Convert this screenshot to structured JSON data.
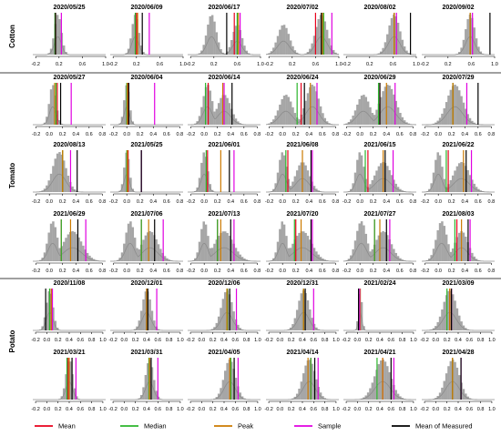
{
  "figure": {
    "groups": [
      {
        "label": "Cotton"
      },
      {
        "label": "Tomato"
      },
      {
        "label": "Potato"
      }
    ],
    "legend": [
      {
        "label": "Mean",
        "color": "#e8001c"
      },
      {
        "label": "Median",
        "color": "#2bb52b"
      },
      {
        "label": "Peak",
        "color": "#cc7a00"
      },
      {
        "label": "Sample",
        "color": "#e000e0"
      },
      {
        "label": "Mean of Measured",
        "color": "#000000"
      }
    ],
    "histogram_color": "#a6a6a6",
    "density_color": "#8c8c8c"
  },
  "chart_data": [
    {
      "type": "histogram",
      "title": "2020/05/25",
      "group": "Cotton",
      "x_ticks": [
        -0.2,
        0.2,
        0.6,
        1.0
      ],
      "xlim": [
        -0.25,
        1.0
      ],
      "hist_peak": 0.18,
      "hist_sd": 0.06,
      "mean": 0.14,
      "median": 0.13,
      "peak": 0.14,
      "sample": 0.24,
      "mean_measured": 0.14
    },
    {
      "type": "histogram",
      "title": "2020/06/09",
      "group": "Cotton",
      "x_ticks": [
        -0.2,
        0.2,
        0.6,
        1.0
      ],
      "xlim": [
        -0.25,
        1.0
      ],
      "hist_peak": 0.18,
      "hist_sd": 0.06,
      "mean": 0.2,
      "median": 0.18,
      "peak": 0.22,
      "sample": 0.42,
      "mean_measured": 0.3
    },
    {
      "type": "histogram",
      "title": "2020/06/17",
      "group": "Cotton",
      "x_ticks": [
        -0.2,
        0.2,
        0.6,
        1.0
      ],
      "xlim": [
        -0.25,
        1.0
      ],
      "hist_peak": 0.16,
      "hist_sd": 0.08,
      "hist2_peak": 0.6,
      "hist2_sd": 0.08,
      "mean": 0.55,
      "median": 0.6,
      "peak": 0.62,
      "sample": 0.65,
      "mean_measured": 0.42
    },
    {
      "type": "histogram",
      "title": "2020/07/02",
      "group": "Cotton",
      "x_ticks": [
        -0.2,
        0.2,
        0.6,
        1.0
      ],
      "xlim": [
        -0.25,
        1.0
      ],
      "hist_peak": 0.7,
      "hist_sd": 0.1,
      "hist2_peak": 0.05,
      "hist2_sd": 0.1,
      "mean": 0.6,
      "median": 0.74,
      "peak": 0.72,
      "sample": 0.88,
      "mean_measured": 0.7
    },
    {
      "type": "histogram",
      "title": "2020/08/02",
      "group": "Cotton",
      "x_ticks": [
        -0.2,
        0.2,
        0.6,
        1.0
      ],
      "xlim": [
        -0.25,
        1.0
      ],
      "hist_peak": 0.62,
      "hist_sd": 0.1,
      "mean": 0.62,
      "median": 0.62,
      "peak": 0.62,
      "sample": 0.66,
      "mean_measured": 0.9
    },
    {
      "type": "histogram",
      "title": "2020/09/02",
      "group": "Cotton",
      "x_ticks": [
        -0.2,
        0.2,
        0.6,
        1.0
      ],
      "xlim": [
        -0.25,
        1.0
      ],
      "hist_peak": 0.58,
      "hist_sd": 0.08,
      "mean": 0.58,
      "median": 0.58,
      "peak": 0.58,
      "sample": 0.62,
      "mean_measured": 0.92
    },
    {
      "type": "histogram",
      "title": "2020/05/27",
      "group": "Tomato",
      "x_ticks": [
        -0.2,
        0.0,
        0.2,
        0.4,
        0.6,
        0.8
      ],
      "xlim": [
        -0.25,
        0.85
      ],
      "hist_peak": 0.05,
      "hist_sd": 0.05,
      "mean": 0.12,
      "median": 0.1,
      "peak": 0.08,
      "sample": 0.33,
      "mean_measured": 0.17
    },
    {
      "type": "histogram",
      "title": "2020/06/04",
      "group": "Tomato",
      "x_ticks": [
        -0.2,
        0.0,
        0.2,
        0.4,
        0.6,
        0.8
      ],
      "xlim": [
        -0.25,
        0.85
      ],
      "hist_peak": 0.0,
      "hist_sd": 0.04,
      "mean": 0.02,
      "median": 0.0,
      "peak": 0.01,
      "sample": 0.42,
      "mean_measured": 0.03
    },
    {
      "type": "histogram",
      "title": "2020/06/14",
      "group": "Tomato",
      "x_ticks": [
        -0.2,
        0.0,
        0.2,
        0.4,
        0.6,
        0.8
      ],
      "xlim": [
        -0.25,
        0.85
      ],
      "hist_peak": 0.05,
      "hist_sd": 0.07,
      "hist2_peak": 0.3,
      "hist2_sd": 0.1,
      "mean": 0.06,
      "median": 0.02,
      "peak": 0.28,
      "sample": 0.3,
      "mean_measured": 0.42
    },
    {
      "type": "histogram",
      "title": "2020/06/24",
      "group": "Tomato",
      "x_ticks": [
        -0.2,
        0.0,
        0.2,
        0.4,
        0.6,
        0.8
      ],
      "xlim": [
        -0.25,
        0.85
      ],
      "hist_peak": 0.45,
      "hist_sd": 0.1,
      "hist2_peak": 0.05,
      "hist2_sd": 0.1,
      "mean": 0.28,
      "median": 0.22,
      "peak": 0.42,
      "sample": 0.52,
      "mean_measured": 0.33
    },
    {
      "type": "histogram",
      "title": "2020/06/29",
      "group": "Tomato",
      "x_ticks": [
        -0.2,
        0.0,
        0.2,
        0.4,
        0.6,
        0.8
      ],
      "xlim": [
        -0.25,
        0.85
      ],
      "hist_peak": 0.42,
      "hist_sd": 0.12,
      "hist2_peak": 0.05,
      "hist2_sd": 0.1,
      "mean": 0.3,
      "median": 0.28,
      "peak": 0.4,
      "sample": 0.53,
      "mean_measured": 0.3
    },
    {
      "type": "histogram",
      "title": "2020/07/29",
      "group": "Tomato",
      "x_ticks": [
        -0.2,
        0.0,
        0.2,
        0.4,
        0.6,
        0.8
      ],
      "xlim": [
        -0.25,
        0.85
      ],
      "hist_peak": 0.25,
      "hist_sd": 0.12,
      "mean": 0.22,
      "median": 0.22,
      "peak": 0.22,
      "sample": 0.43,
      "mean_measured": 0.6
    },
    {
      "type": "histogram",
      "title": "2020/08/13",
      "group": "Tomato",
      "x_ticks": [
        -0.2,
        0.0,
        0.2,
        0.4,
        0.6,
        0.8
      ],
      "xlim": [
        -0.25,
        0.85
      ],
      "hist_peak": 0.15,
      "hist_sd": 0.1,
      "mean": 0.2,
      "median": 0.2,
      "peak": 0.2,
      "sample": 0.32,
      "mean_measured": 0.42
    },
    {
      "type": "histogram",
      "title": "2021/05/25",
      "group": "Tomato",
      "x_ticks": [
        -0.2,
        0.0,
        0.2,
        0.4,
        0.6,
        0.8
      ],
      "xlim": [
        -0.25,
        0.85
      ],
      "hist_peak": 0.0,
      "hist_sd": 0.04,
      "mean": 0.02,
      "median": 0.0,
      "peak": 0.01,
      "sample": 0.22,
      "mean_measured": 0.22
    },
    {
      "type": "histogram",
      "title": "2021/06/01",
      "group": "Tomato",
      "x_ticks": [
        -0.2,
        0.0,
        0.2,
        0.4,
        0.6,
        0.8
      ],
      "xlim": [
        -0.25,
        0.85
      ],
      "hist_peak": 0.0,
      "hist_sd": 0.05,
      "mean": 0.05,
      "median": 0.03,
      "peak": 0.25,
      "sample": 0.45,
      "mean_measured": 0.38
    },
    {
      "type": "histogram",
      "title": "2021/06/08",
      "group": "Tomato",
      "x_ticks": [
        -0.2,
        0.0,
        0.2,
        0.4,
        0.6,
        0.8
      ],
      "xlim": [
        -0.25,
        0.85
      ],
      "hist_peak": 0.0,
      "hist_sd": 0.06,
      "hist2_peak": 0.3,
      "hist2_sd": 0.1,
      "mean": 0.08,
      "median": 0.05,
      "peak": 0.3,
      "sample": 0.45,
      "mean_measured": 0.43
    },
    {
      "type": "histogram",
      "title": "2021/06/15",
      "group": "Tomato",
      "x_ticks": [
        -0.2,
        0.0,
        0.2,
        0.4,
        0.6,
        0.8
      ],
      "xlim": [
        -0.25,
        0.85
      ],
      "hist_peak": 0.0,
      "hist_sd": 0.06,
      "hist2_peak": 0.35,
      "hist2_sd": 0.12,
      "mean": 0.12,
      "median": 0.08,
      "peak": 0.35,
      "sample": 0.5,
      "mean_measured": 0.38
    },
    {
      "type": "histogram",
      "title": "2021/06/22",
      "group": "Tomato",
      "x_ticks": [
        -0.2,
        0.0,
        0.2,
        0.4,
        0.6,
        0.8
      ],
      "xlim": [
        -0.25,
        0.85
      ],
      "hist_peak": 0.0,
      "hist_sd": 0.06,
      "hist2_peak": 0.35,
      "hist2_sd": 0.12,
      "mean": 0.15,
      "median": 0.12,
      "peak": 0.38,
      "sample": 0.5,
      "mean_measured": 0.42
    },
    {
      "type": "histogram",
      "title": "2021/06/29",
      "group": "Tomato",
      "x_ticks": [
        -0.2,
        0.0,
        0.2,
        0.4,
        0.6,
        0.8
      ],
      "xlim": [
        -0.25,
        0.85
      ],
      "hist_peak": 0.05,
      "hist_sd": 0.07,
      "hist2_peak": 0.35,
      "hist2_sd": 0.14,
      "mean": 0.18,
      "median": 0.18,
      "peak": 0.32,
      "sample": 0.55,
      "mean_measured": 0.43
    },
    {
      "type": "histogram",
      "title": "2021/07/06",
      "group": "Tomato",
      "x_ticks": [
        -0.2,
        0.0,
        0.2,
        0.4,
        0.6,
        0.8
      ],
      "xlim": [
        -0.25,
        0.85
      ],
      "hist_peak": 0.05,
      "hist_sd": 0.07,
      "hist2_peak": 0.35,
      "hist2_sd": 0.12,
      "mean": 0.22,
      "median": 0.22,
      "peak": 0.33,
      "sample": 0.55,
      "mean_measured": 0.42
    },
    {
      "type": "histogram",
      "title": "2021/07/13",
      "group": "Tomato",
      "x_ticks": [
        -0.2,
        0.0,
        0.2,
        0.4,
        0.6,
        0.8
      ],
      "xlim": [
        -0.25,
        0.85
      ],
      "hist_peak": 0.0,
      "hist_sd": 0.06,
      "hist2_peak": 0.3,
      "hist2_sd": 0.14,
      "mean": 0.2,
      "median": 0.2,
      "peak": 0.25,
      "sample": 0.45,
      "mean_measured": 0.4
    },
    {
      "type": "histogram",
      "title": "2021/07/20",
      "group": "Tomato",
      "x_ticks": [
        -0.2,
        0.0,
        0.2,
        0.4,
        0.6,
        0.8
      ],
      "xlim": [
        -0.25,
        0.85
      ],
      "hist_peak": 0.0,
      "hist_sd": 0.06,
      "hist2_peak": 0.3,
      "hist2_sd": 0.14,
      "mean": 0.2,
      "median": 0.18,
      "peak": 0.28,
      "sample": 0.45,
      "mean_measured": 0.43
    },
    {
      "type": "histogram",
      "title": "2021/07/27",
      "group": "Tomato",
      "x_ticks": [
        -0.2,
        0.0,
        0.2,
        0.4,
        0.6,
        0.8
      ],
      "xlim": [
        -0.25,
        0.85
      ],
      "hist_peak": 0.02,
      "hist_sd": 0.08,
      "hist2_peak": 0.35,
      "hist2_sd": 0.12,
      "mean": 0.22,
      "median": 0.22,
      "peak": 0.3,
      "sample": 0.45,
      "mean_measured": 0.4
    },
    {
      "type": "histogram",
      "title": "2021/08/03",
      "group": "Tomato",
      "x_ticks": [
        -0.2,
        0.0,
        0.2,
        0.4,
        0.6,
        0.8
      ],
      "xlim": [
        -0.25,
        0.85
      ],
      "hist_peak": 0.05,
      "hist_sd": 0.08,
      "hist2_peak": 0.35,
      "hist2_sd": 0.1,
      "mean": 0.28,
      "median": 0.25,
      "peak": 0.35,
      "sample": 0.48,
      "mean_measured": 0.45
    },
    {
      "type": "histogram",
      "title": "2020/11/08",
      "group": "Potato",
      "x_ticks": [
        -0.2,
        0.0,
        0.2,
        0.4,
        0.6,
        0.8,
        1.0
      ],
      "xlim": [
        -0.25,
        1.05
      ],
      "hist_peak": 0.05,
      "hist_sd": 0.06,
      "mean": 0.08,
      "median": 0.05,
      "peak": 0.08,
      "sample": 0.1,
      "mean_measured": -0.02
    },
    {
      "type": "histogram",
      "title": "2020/12/01",
      "group": "Potato",
      "x_ticks": [
        -0.2,
        0.0,
        0.2,
        0.4,
        0.6,
        0.8,
        1.0
      ],
      "xlim": [
        -0.25,
        1.05
      ],
      "hist_peak": 0.4,
      "hist_sd": 0.08,
      "mean": 0.4,
      "median": 0.4,
      "peak": 0.4,
      "sample": 0.58,
      "mean_measured": 0.42
    },
    {
      "type": "histogram",
      "title": "2020/12/06",
      "group": "Potato",
      "x_ticks": [
        -0.2,
        0.0,
        0.2,
        0.4,
        0.6,
        0.8,
        1.0
      ],
      "xlim": [
        -0.25,
        1.05
      ],
      "hist_peak": 0.45,
      "hist_sd": 0.1,
      "mean": 0.46,
      "median": 0.46,
      "peak": 0.45,
      "sample": 0.62,
      "mean_measured": 0.5
    },
    {
      "type": "histogram",
      "title": "2020/12/31",
      "group": "Potato",
      "x_ticks": [
        -0.2,
        0.0,
        0.2,
        0.4,
        0.6,
        0.8,
        1.0
      ],
      "xlim": [
        -0.25,
        1.05
      ],
      "hist_peak": 0.42,
      "hist_sd": 0.1,
      "mean": 0.42,
      "median": 0.42,
      "peak": 0.42,
      "sample": 0.6,
      "mean_measured": 0.45
    },
    {
      "type": "histogram",
      "title": "2021/02/24",
      "group": "Potato",
      "x_ticks": [
        -0.2,
        0.0,
        0.2,
        0.4,
        0.6,
        0.8,
        1.0
      ],
      "xlim": [
        -0.25,
        1.05
      ],
      "hist_peak": 0.05,
      "hist_sd": 0.03,
      "mean": 0.05,
      "median": 0.05,
      "peak": 0.05,
      "sample": 0.04,
      "mean_measured": 0.02
    },
    {
      "type": "histogram",
      "title": "2021/03/09",
      "group": "Potato",
      "x_ticks": [
        -0.2,
        0.0,
        0.2,
        0.4,
        0.6,
        0.8,
        1.0
      ],
      "xlim": [
        -0.25,
        1.05
      ],
      "hist_peak": 0.25,
      "hist_sd": 0.12,
      "mean": 0.25,
      "median": 0.2,
      "peak": 0.25,
      "sample": 0.28,
      "mean_measured": 0.28
    },
    {
      "type": "histogram",
      "title": "2021/03/21",
      "group": "Potato",
      "x_ticks": [
        -0.2,
        0.0,
        0.2,
        0.4,
        0.6,
        0.8,
        1.0
      ],
      "xlim": [
        -0.25,
        1.05
      ],
      "hist_peak": 0.4,
      "hist_sd": 0.06,
      "mean": 0.38,
      "median": 0.36,
      "peak": 0.4,
      "sample": 0.52,
      "mean_measured": 0.45
    },
    {
      "type": "histogram",
      "title": "2021/03/31",
      "group": "Potato",
      "x_ticks": [
        -0.2,
        0.0,
        0.2,
        0.4,
        0.6,
        0.8,
        1.0
      ],
      "xlim": [
        -0.25,
        1.05
      ],
      "hist_peak": 0.45,
      "hist_sd": 0.07,
      "mean": 0.45,
      "median": 0.44,
      "peak": 0.45,
      "sample": 0.6,
      "mean_measured": 0.48
    },
    {
      "type": "histogram",
      "title": "2021/04/05",
      "group": "Potato",
      "x_ticks": [
        -0.2,
        0.0,
        0.2,
        0.4,
        0.6,
        0.8,
        1.0
      ],
      "xlim": [
        -0.25,
        1.05
      ],
      "hist_peak": 0.5,
      "hist_sd": 0.1,
      "mean": 0.52,
      "median": 0.52,
      "peak": 0.5,
      "sample": 0.65,
      "mean_measured": 0.58
    },
    {
      "type": "histogram",
      "title": "2021/04/14",
      "group": "Potato",
      "x_ticks": [
        -0.2,
        0.0,
        0.2,
        0.4,
        0.6,
        0.8,
        1.0
      ],
      "xlim": [
        -0.25,
        1.05
      ],
      "hist_peak": 0.52,
      "hist_sd": 0.11,
      "mean": 0.55,
      "median": 0.55,
      "peak": 0.5,
      "sample": 0.68,
      "mean_measured": 0.62
    },
    {
      "type": "histogram",
      "title": "2021/04/21",
      "group": "Potato",
      "x_ticks": [
        -0.2,
        0.0,
        0.2,
        0.4,
        0.6,
        0.8,
        1.0
      ],
      "xlim": [
        -0.25,
        1.05
      ],
      "hist_peak": 0.45,
      "hist_sd": 0.14,
      "mean": 0.45,
      "median": 0.35,
      "peak": 0.45,
      "sample": 0.65,
      "mean_measured": 0.6
    },
    {
      "type": "histogram",
      "title": "2021/04/28",
      "group": "Potato",
      "x_ticks": [
        -0.2,
        0.0,
        0.2,
        0.4,
        0.6,
        0.8,
        1.0
      ],
      "xlim": [
        -0.25,
        1.05
      ],
      "hist_peak": 0.3,
      "hist_sd": 0.12,
      "mean": 0.3,
      "median": 0.3,
      "peak": 0.3,
      "sample": 0.45,
      "mean_measured": 0.45
    }
  ]
}
